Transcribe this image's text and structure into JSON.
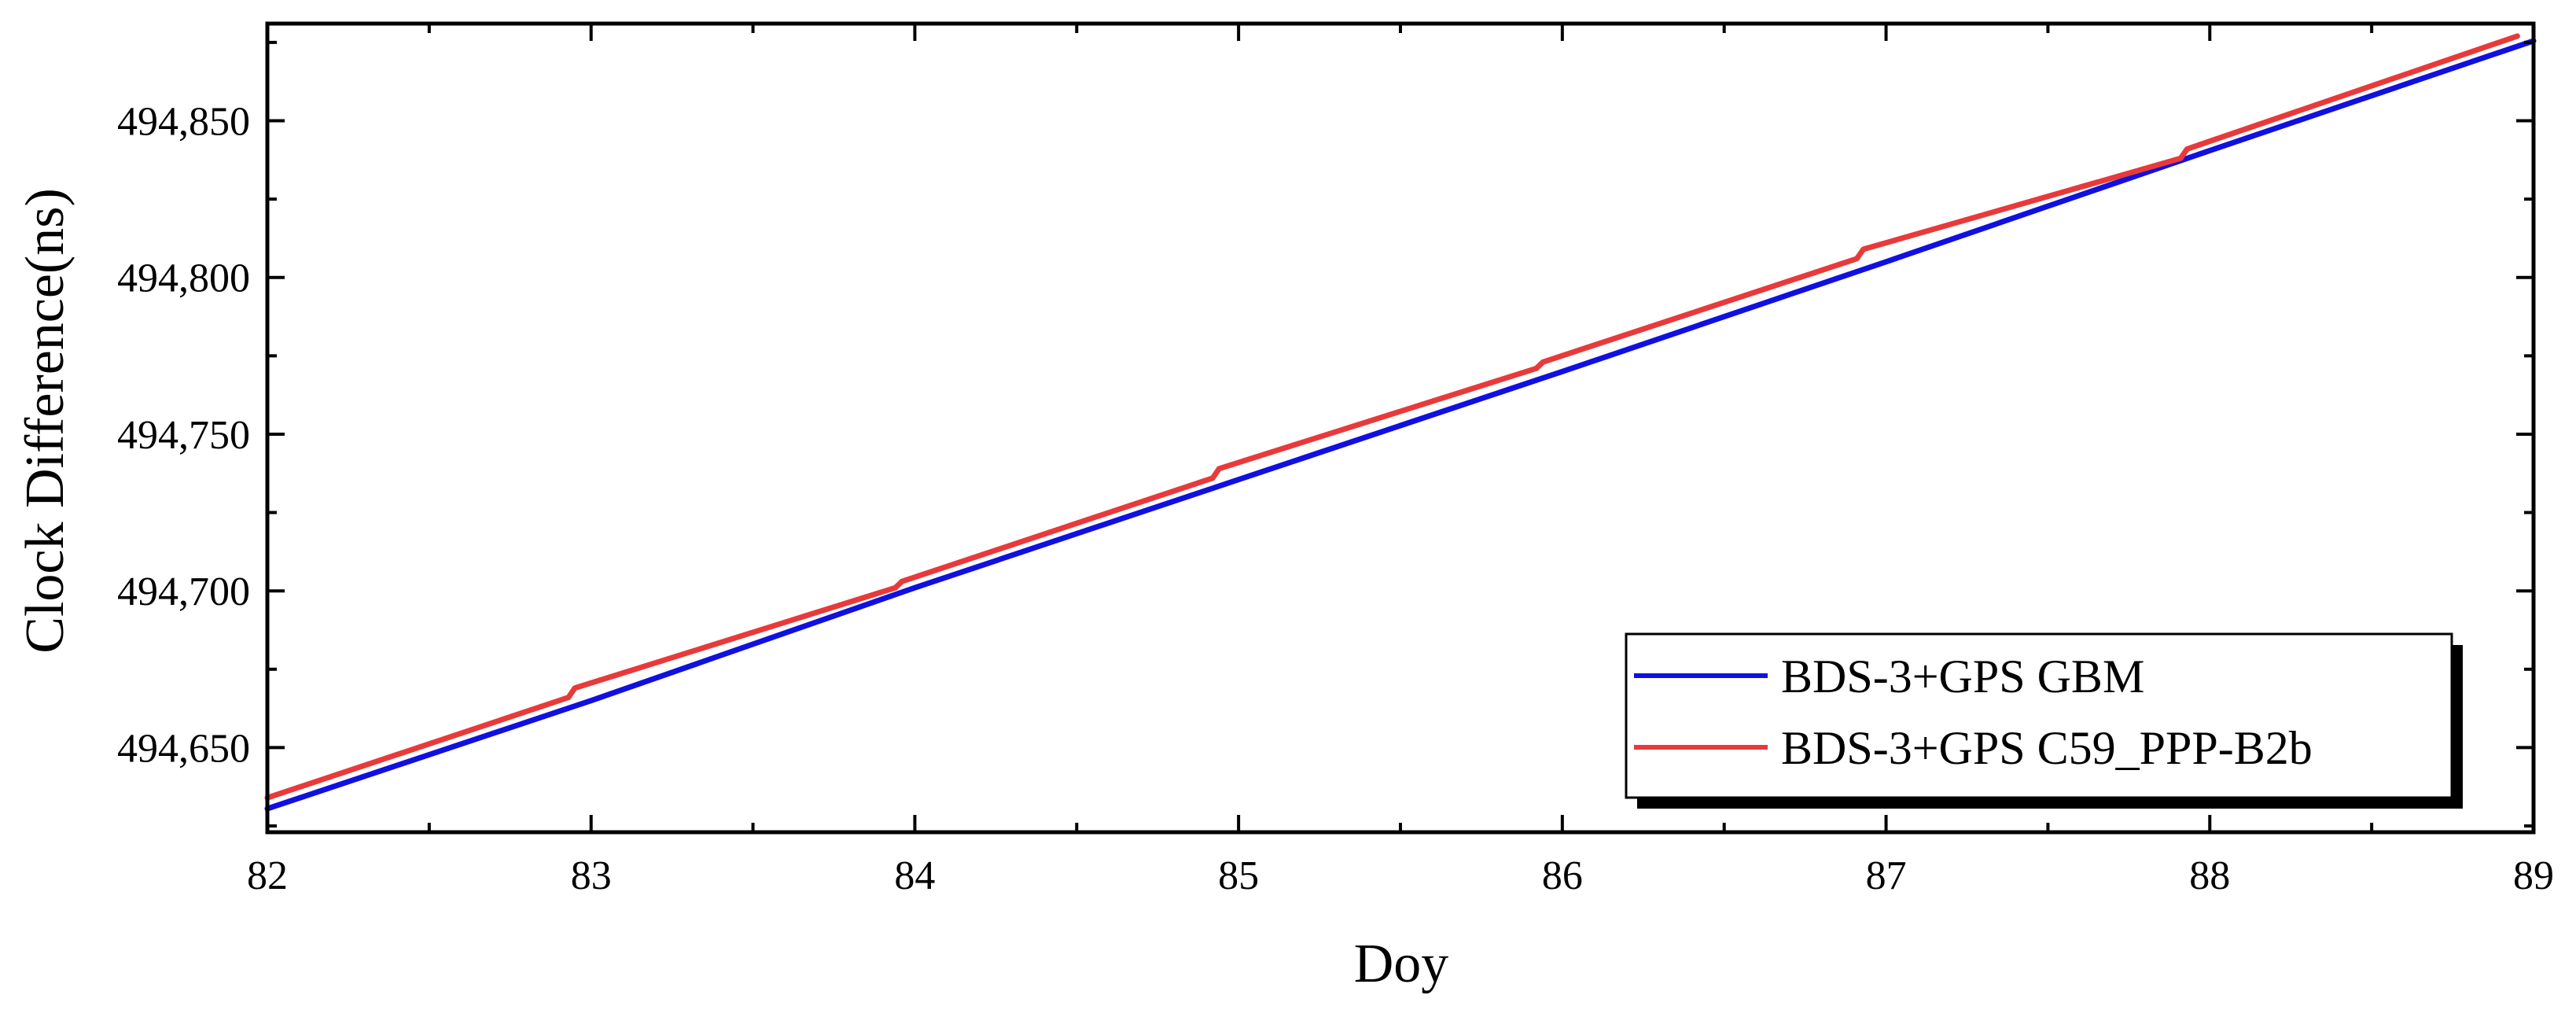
{
  "chart_data": {
    "type": "line",
    "xlabel": "Doy",
    "ylabel": "Clock Difference(ns)",
    "xlim": [
      82,
      89
    ],
    "ylim": [
      494623,
      494881
    ],
    "x_ticks": [
      82,
      83,
      84,
      85,
      86,
      87,
      88,
      89
    ],
    "x_tick_labels": [
      "82",
      "83",
      "84",
      "85",
      "86",
      "87",
      "88",
      "89"
    ],
    "y_ticks": [
      494650,
      494700,
      494750,
      494800,
      494850
    ],
    "y_tick_labels": [
      "494,650",
      "494,700",
      "494,750",
      "494,800",
      "494,850"
    ],
    "grid": false,
    "legend_position": "bottom-right",
    "series": [
      {
        "name": "BDS-3+GPS GBM",
        "color": "#1010e0",
        "x": [
          82,
          83,
          84,
          85,
          86,
          87,
          88,
          89
        ],
        "y": [
          494630.5,
          494665,
          494701,
          494735.5,
          494770,
          494805,
          494840.5,
          494875.5
        ]
      },
      {
        "name": "BDS-3+GPS C59_PPP-B2b",
        "color": "#e83a3a",
        "x": [
          82,
          82.93,
          82.95,
          83.94,
          83.96,
          84.92,
          84.94,
          85.92,
          85.94,
          86.91,
          86.93,
          87.91,
          87.93,
          88.95
        ],
        "y": [
          494634,
          494666,
          494669,
          494701,
          494703,
          494736,
          494739,
          494771,
          494773,
          494806,
          494809,
          494838,
          494841,
          494877
        ]
      }
    ]
  }
}
